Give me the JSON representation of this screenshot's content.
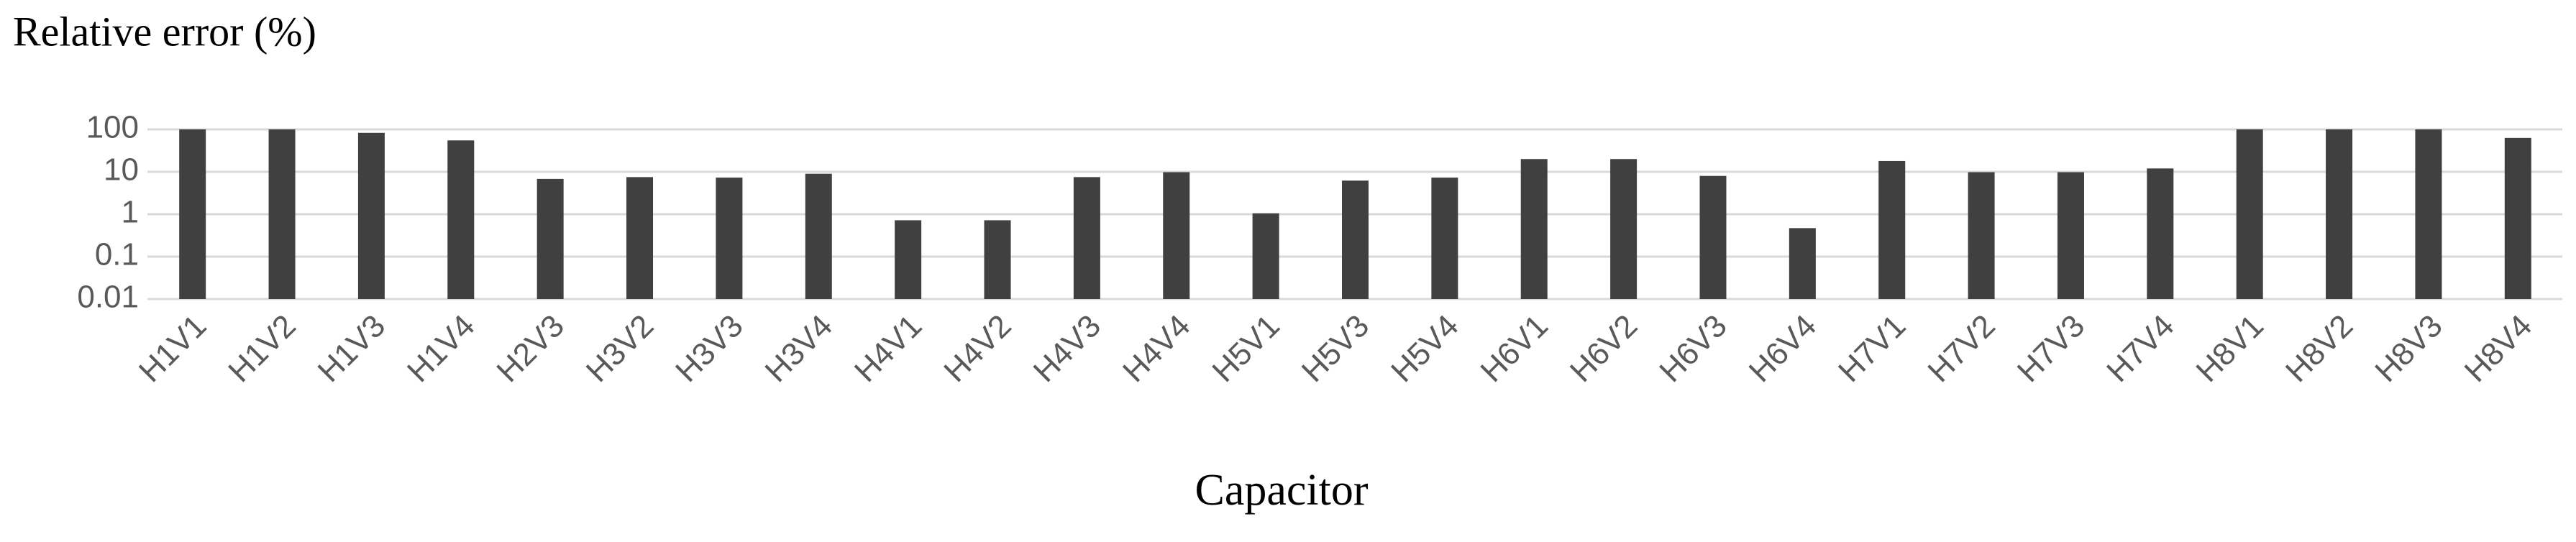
{
  "chart_data": {
    "type": "bar",
    "title": "Relative error  (%)",
    "x_label": "Capacitor",
    "categories": [
      "H1V1",
      "H1V2",
      "H1V3",
      "H1V4",
      "H2V3",
      "H3V2",
      "H3V3",
      "H3V4",
      "H4V1",
      "H4V2",
      "H4V3",
      "H4V4",
      "H5V1",
      "H5V3",
      "H5V4",
      "H6V1",
      "H6V2",
      "H6V3",
      "H6V4",
      "H7V1",
      "H7V2",
      "H7V3",
      "H7V4",
      "H8V1",
      "H8V2",
      "H8V3",
      "H8V4"
    ],
    "values": [
      100,
      100,
      83,
      55,
      6.8,
      7.5,
      7.3,
      9,
      0.72,
      0.72,
      7.5,
      9.8,
      1.05,
      6.2,
      7.3,
      20,
      20,
      8,
      0.47,
      18,
      9.8,
      9.8,
      12,
      100,
      100,
      100,
      63
    ],
    "color": "#404040",
    "yscale": "log",
    "ylim": [
      0.01,
      100
    ],
    "yticks": [
      0.01,
      0.1,
      1,
      10,
      100
    ],
    "grid": true
  }
}
